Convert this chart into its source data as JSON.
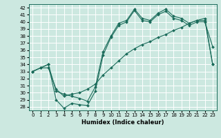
{
  "xlabel": "Humidex (Indice chaleur)",
  "bg_color": "#cce8e0",
  "grid_color": "#ffffff",
  "line_color": "#1a6b5a",
  "xlim": [
    -0.5,
    23.5
  ],
  "ylim": [
    27.5,
    42.5
  ],
  "xticks": [
    0,
    1,
    2,
    3,
    4,
    5,
    6,
    7,
    8,
    9,
    10,
    11,
    12,
    13,
    14,
    15,
    16,
    17,
    18,
    19,
    20,
    21,
    22,
    23
  ],
  "yticks": [
    28,
    29,
    30,
    31,
    32,
    33,
    34,
    35,
    36,
    37,
    38,
    39,
    40,
    41,
    42
  ],
  "line1_y": [
    33.0,
    33.5,
    34.0,
    29.0,
    27.8,
    28.5,
    28.3,
    28.2,
    30.2,
    35.3,
    37.8,
    39.5,
    40.0,
    41.6,
    40.2,
    40.0,
    41.0,
    41.5,
    40.5,
    40.2,
    39.5,
    40.0,
    40.0,
    36.5
  ],
  "line2_y": [
    33.0,
    33.5,
    34.0,
    30.2,
    29.8,
    29.5,
    29.2,
    28.8,
    30.8,
    35.8,
    38.0,
    39.8,
    40.2,
    41.8,
    40.5,
    40.2,
    41.2,
    41.8,
    40.8,
    40.5,
    39.8,
    40.2,
    40.2,
    34.0
  ],
  "line3_y": [
    33.0,
    33.5,
    33.5,
    30.5,
    29.5,
    29.8,
    30.0,
    30.5,
    31.2,
    32.5,
    33.5,
    34.5,
    35.5,
    36.2,
    36.8,
    37.2,
    37.8,
    38.2,
    38.8,
    39.2,
    39.8,
    40.2,
    40.5,
    34.0
  ],
  "tick_fontsize": 5.0,
  "xlabel_fontsize": 6.0,
  "linewidth": 0.8,
  "markersize": 2.0
}
